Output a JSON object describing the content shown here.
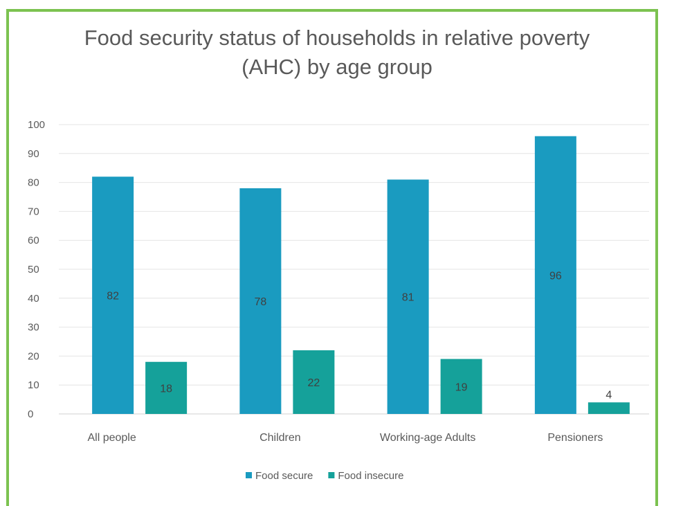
{
  "chart_data": {
    "type": "bar",
    "title_lines": [
      "Food security status of households in relative poverty",
      "(AHC) by age group"
    ],
    "categories": [
      "All people",
      "Children",
      "Working-age Adults",
      "Pensioners"
    ],
    "series": [
      {
        "name": "Food secure",
        "values": [
          82,
          78,
          81,
          96
        ],
        "color": "#1a9bc0"
      },
      {
        "name": "Food insecure",
        "values": [
          18,
          22,
          19,
          4
        ],
        "color": "#15a19a"
      }
    ],
    "ylim": [
      0,
      100
    ],
    "yticks": [
      0,
      10,
      20,
      30,
      40,
      50,
      60,
      70,
      80,
      90,
      100
    ],
    "grid": true,
    "legend_position": "bottom"
  }
}
